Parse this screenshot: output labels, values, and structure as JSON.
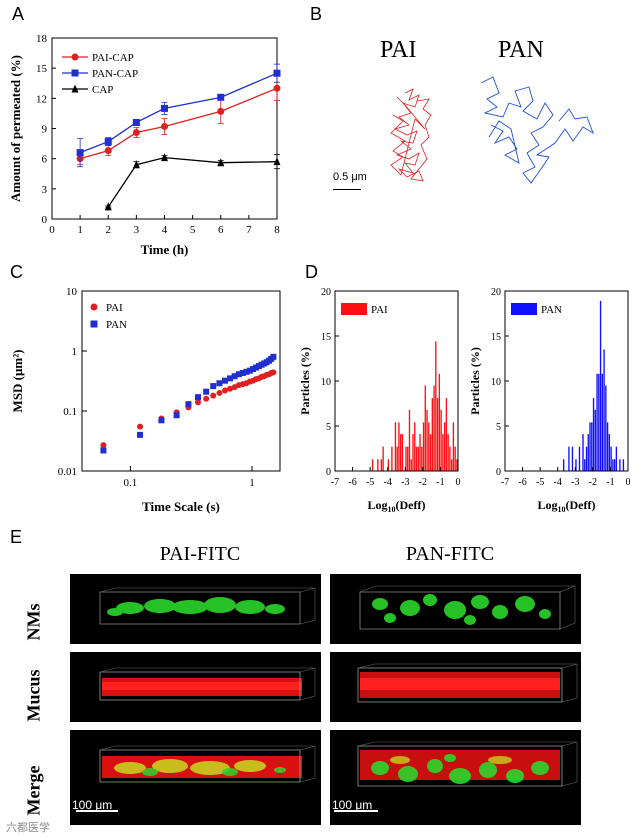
{
  "panels": {
    "A": "A",
    "B": "B",
    "C": "C",
    "D": "D",
    "E": "E"
  },
  "chart_data": [
    {
      "type": "line",
      "panel": "A",
      "xlabel": "Time (h)",
      "ylabel": "Amount of permeated (%)",
      "xlim": [
        0,
        8
      ],
      "ylim": [
        0,
        18
      ],
      "xticks": [
        "0",
        "1",
        "2",
        "3",
        "4",
        "5",
        "6",
        "7",
        "8"
      ],
      "yticks": [
        "0",
        "3",
        "6",
        "9",
        "12",
        "15",
        "18"
      ],
      "series": [
        {
          "name": "PAI-CAP",
          "color": "#e02020",
          "marker": "circle",
          "x": [
            1,
            2,
            3,
            4,
            6,
            8
          ],
          "values": [
            6.0,
            6.8,
            8.6,
            9.2,
            10.7,
            13.0
          ],
          "err": [
            0.6,
            0.5,
            0.5,
            0.8,
            1.2,
            1.2
          ]
        },
        {
          "name": "PAN-CAP",
          "color": "#1f2fd0",
          "marker": "square",
          "x": [
            1,
            2,
            3,
            4,
            6,
            8
          ],
          "values": [
            6.6,
            7.7,
            9.6,
            11.0,
            12.1,
            14.5
          ],
          "err": [
            1.4,
            0.4,
            0.3,
            0.6,
            0.2,
            0.9
          ]
        },
        {
          "name": "CAP",
          "color": "#000000",
          "marker": "triangle",
          "x": [
            2,
            3,
            4,
            6,
            8
          ],
          "values": [
            1.2,
            5.4,
            6.1,
            5.6,
            5.7
          ],
          "err": [
            0.1,
            0.3,
            0.2,
            0.2,
            0.7
          ]
        }
      ]
    },
    {
      "type": "scatter",
      "panel": "C",
      "xlabel": "Time Scale (s)",
      "ylabel": "MSD (μm²)",
      "xscale": "log",
      "yscale": "log",
      "xlim": [
        0.04,
        1.7
      ],
      "ylim": [
        0.01,
        10
      ],
      "xticks": [
        "0.1",
        "1"
      ],
      "yticks": [
        "0.01",
        "0.1",
        "1",
        "10"
      ],
      "series": [
        {
          "name": "PAI",
          "color": "#e02020",
          "marker": "circle",
          "x": [
            0.06,
            0.12,
            0.18,
            0.24,
            0.3,
            0.36,
            0.42,
            0.48,
            0.54,
            0.6,
            0.66,
            0.72,
            0.78,
            0.84,
            0.9,
            0.96,
            1.02,
            1.08,
            1.14,
            1.2,
            1.26,
            1.32,
            1.38,
            1.44,
            1.5
          ],
          "values": [
            0.027,
            0.055,
            0.075,
            0.095,
            0.115,
            0.14,
            0.16,
            0.18,
            0.2,
            0.22,
            0.235,
            0.25,
            0.27,
            0.28,
            0.29,
            0.31,
            0.32,
            0.34,
            0.35,
            0.37,
            0.38,
            0.4,
            0.41,
            0.43,
            0.44
          ]
        },
        {
          "name": "PAN",
          "color": "#1f2fd0",
          "marker": "square",
          "x": [
            0.06,
            0.12,
            0.18,
            0.24,
            0.3,
            0.36,
            0.42,
            0.48,
            0.54,
            0.6,
            0.66,
            0.72,
            0.78,
            0.84,
            0.9,
            0.96,
            1.02,
            1.08,
            1.14,
            1.2,
            1.26,
            1.32,
            1.38,
            1.44,
            1.5
          ],
          "values": [
            0.022,
            0.04,
            0.07,
            0.085,
            0.13,
            0.17,
            0.21,
            0.26,
            0.29,
            0.32,
            0.35,
            0.38,
            0.41,
            0.43,
            0.45,
            0.47,
            0.5,
            0.53,
            0.56,
            0.59,
            0.62,
            0.65,
            0.69,
            0.74,
            0.8
          ]
        }
      ]
    },
    {
      "type": "bar",
      "panel": "D",
      "title": "PAI",
      "color": "#ff1010",
      "xlabel": "Log10(Deff)",
      "ylabel": "Particles (%)",
      "xlim": [
        -7,
        0
      ],
      "ylim": [
        0,
        20
      ],
      "xticks": [
        "-7",
        "-6",
        "-5",
        "-4",
        "-3",
        "-2",
        "-1",
        "0"
      ],
      "yticks": [
        "0",
        "5",
        "10",
        "15",
        "20"
      ],
      "bin_width": 0.1,
      "bin_starts": [
        -4.9,
        -4.6,
        -4.4,
        -4.3,
        -4.0,
        -3.8,
        -3.6,
        -3.5,
        -3.4,
        -3.3,
        -3.2,
        -3.0,
        -2.9,
        -2.8,
        -2.7,
        -2.6,
        -2.5,
        -2.4,
        -2.3,
        -2.2,
        -2.1,
        -2.0,
        -1.9,
        -1.8,
        -1.7,
        -1.6,
        -1.5,
        -1.4,
        -1.3,
        -1.2,
        -1.1,
        -1.0,
        -0.9,
        -0.8,
        -0.7,
        -0.6,
        -0.5,
        -0.4,
        -0.3,
        -0.2,
        -0.1
      ],
      "values": [
        1.3,
        1.3,
        1.3,
        2.7,
        1.3,
        2.7,
        5.4,
        2.7,
        5.4,
        4.1,
        4.1,
        2.7,
        2.7,
        6.8,
        1.3,
        4.1,
        5.4,
        2.7,
        2.7,
        4.1,
        2.7,
        5.4,
        9.5,
        6.8,
        5.4,
        4.1,
        8.1,
        9.5,
        14.4,
        8.1,
        10.8,
        6.8,
        4.1,
        5.4,
        8.1,
        4.1,
        2.7,
        1.3,
        5.4,
        2.7,
        1.3
      ]
    },
    {
      "type": "bar",
      "panel": "D",
      "title": "PAN",
      "color": "#1010ff",
      "xlabel": "Log10(Deff)",
      "ylabel": "Particles (%)",
      "xlim": [
        -7,
        0
      ],
      "ylim": [
        0,
        20
      ],
      "xticks": [
        "-7",
        "-6",
        "-5",
        "-4",
        "-3",
        "-2",
        "-1",
        "0"
      ],
      "yticks": [
        "0",
        "5",
        "10",
        "15",
        "20"
      ],
      "bin_width": 0.1,
      "bin_starts": [
        -3.7,
        -3.4,
        -3.2,
        -3.0,
        -2.8,
        -2.6,
        -2.5,
        -2.4,
        -2.3,
        -2.2,
        -2.1,
        -2.0,
        -1.9,
        -1.8,
        -1.7,
        -1.6,
        -1.5,
        -1.4,
        -1.3,
        -1.2,
        -1.1,
        -1.0,
        -0.9,
        -0.8,
        -0.7,
        -0.5,
        -0.3
      ],
      "values": [
        1.3,
        2.7,
        2.7,
        1.3,
        2.7,
        4.1,
        1.3,
        2.7,
        4.1,
        5.4,
        5.4,
        8.1,
        6.8,
        10.8,
        10.8,
        18.9,
        10.8,
        13.5,
        9.5,
        5.4,
        4.1,
        2.7,
        1.3,
        1.3,
        2.7,
        1.3,
        1.3
      ]
    }
  ],
  "panelB": {
    "label_pai": "PAI",
    "label_pan": "PAN",
    "scale": "0.5 μm"
  },
  "panelE": {
    "col1": "PAI-FITC",
    "col2": "PAN-FITC",
    "rows": [
      "NMs",
      "Mucus",
      "Merge"
    ],
    "scale": "100 μm"
  },
  "watermark": "六都医学"
}
